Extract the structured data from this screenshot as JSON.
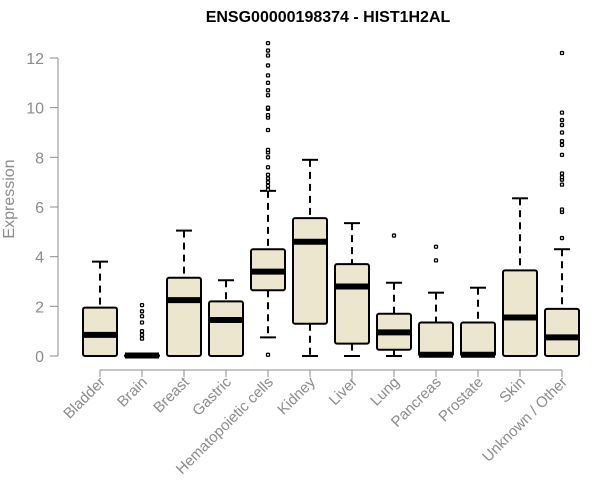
{
  "chart_data": {
    "type": "boxplot",
    "title": "ENSG00000198374 - HIST1H2AL",
    "xlabel": "",
    "ylabel": "Expression",
    "ylim": [
      0,
      12.5
    ],
    "yticks": [
      0,
      2,
      4,
      6,
      8,
      10,
      12
    ],
    "colors": {
      "box_fill": "#ede6cf",
      "stroke": "#000000",
      "axis": "#8c8c8c"
    },
    "series": [
      {
        "category": "Bladder",
        "min": 0,
        "q1": 0,
        "median": 0.85,
        "q3": 1.95,
        "max": 3.8,
        "outliers": []
      },
      {
        "category": "Brain",
        "min": 0,
        "q1": 0,
        "median": 0.02,
        "q3": 0.05,
        "max": 0.1,
        "outliers": [
          0.7,
          0.85,
          1.0,
          1.35,
          1.6,
          1.8,
          2.05
        ]
      },
      {
        "category": "Breast",
        "min": 0,
        "q1": 0,
        "median": 2.25,
        "q3": 3.15,
        "max": 5.05,
        "outliers": []
      },
      {
        "category": "Gastric",
        "min": 0,
        "q1": 0,
        "median": 1.45,
        "q3": 2.2,
        "max": 3.05,
        "outliers": []
      },
      {
        "category": "Hematopoietic cells",
        "min": 0.75,
        "q1": 2.65,
        "median": 3.4,
        "q3": 4.3,
        "max": 6.65,
        "outliers": [
          0.05,
          6.7,
          6.85,
          7.0,
          7.15,
          7.3,
          7.6,
          8.0,
          8.2,
          8.3,
          9.1,
          9.6,
          9.7,
          9.95,
          10.0,
          10.5,
          10.7,
          11.0,
          11.3,
          11.7,
          12.1,
          12.3,
          12.6
        ]
      },
      {
        "category": "Kidney",
        "min": 0,
        "q1": 1.3,
        "median": 4.6,
        "q3": 5.55,
        "max": 7.9,
        "outliers": []
      },
      {
        "category": "Liver",
        "min": 0,
        "q1": 0.5,
        "median": 2.8,
        "q3": 3.7,
        "max": 5.35,
        "outliers": []
      },
      {
        "category": "Lung",
        "min": 0,
        "q1": 0.25,
        "median": 0.95,
        "q3": 1.7,
        "max": 2.95,
        "outliers": [
          4.85
        ]
      },
      {
        "category": "Pancreas",
        "min": 0,
        "q1": 0,
        "median": 0.05,
        "q3": 1.35,
        "max": 2.55,
        "outliers": [
          3.85,
          4.4
        ]
      },
      {
        "category": "Prostate",
        "min": 0,
        "q1": 0,
        "median": 0.05,
        "q3": 1.35,
        "max": 2.75,
        "outliers": []
      },
      {
        "category": "Skin",
        "min": 0,
        "q1": 0,
        "median": 1.55,
        "q3": 3.45,
        "max": 6.35,
        "outliers": []
      },
      {
        "category": "Unknown / Other",
        "min": 0,
        "q1": 0,
        "median": 0.75,
        "q3": 1.9,
        "max": 4.3,
        "outliers": [
          4.75,
          5.8,
          5.9,
          6.9,
          7.1,
          7.2,
          7.35,
          8.1,
          8.5,
          8.65,
          9.0,
          9.3,
          9.5,
          9.8,
          12.2
        ]
      }
    ]
  }
}
